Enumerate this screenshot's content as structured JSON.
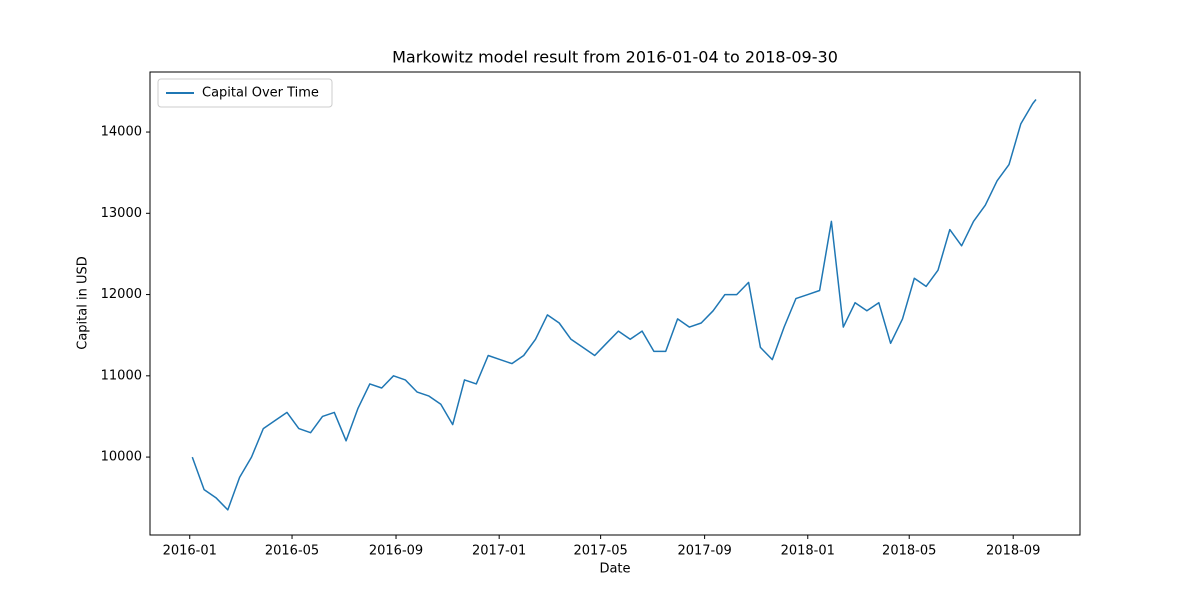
{
  "chart_data": {
    "type": "line",
    "title": "Markowitz model result from 2016-01-04 to 2018-09-30",
    "x_label": "Date",
    "y_label": "Capital in USD",
    "x": [
      "2016-01-04",
      "2016-01-18",
      "2016-02-01",
      "2016-02-15",
      "2016-02-29",
      "2016-03-14",
      "2016-03-28",
      "2016-04-11",
      "2016-04-25",
      "2016-05-09",
      "2016-05-23",
      "2016-06-06",
      "2016-06-20",
      "2016-07-04",
      "2016-07-18",
      "2016-08-01",
      "2016-08-15",
      "2016-08-29",
      "2016-09-12",
      "2016-09-26",
      "2016-10-10",
      "2016-10-24",
      "2016-11-07",
      "2016-11-21",
      "2016-12-05",
      "2016-12-19",
      "2017-01-02",
      "2017-01-16",
      "2017-01-30",
      "2017-02-13",
      "2017-02-27",
      "2017-03-13",
      "2017-03-27",
      "2017-04-10",
      "2017-04-24",
      "2017-05-08",
      "2017-05-22",
      "2017-06-05",
      "2017-06-19",
      "2017-07-03",
      "2017-07-17",
      "2017-07-31",
      "2017-08-14",
      "2017-08-28",
      "2017-09-11",
      "2017-09-25",
      "2017-10-09",
      "2017-10-23",
      "2017-11-06",
      "2017-11-20",
      "2017-12-04",
      "2017-12-18",
      "2018-01-01",
      "2018-01-15",
      "2018-01-29",
      "2018-02-12",
      "2018-02-26",
      "2018-03-12",
      "2018-03-26",
      "2018-04-09",
      "2018-04-23",
      "2018-05-07",
      "2018-05-21",
      "2018-06-04",
      "2018-06-18",
      "2018-07-02",
      "2018-07-16",
      "2018-07-30",
      "2018-08-13",
      "2018-08-27",
      "2018-09-10",
      "2018-09-24",
      "2018-09-28"
    ],
    "series": [
      {
        "name": "Capital Over Time",
        "color": "#1f77b4",
        "values": [
          10000,
          9600,
          9500,
          9350,
          9750,
          10000,
          10350,
          10450,
          10550,
          10350,
          10300,
          10500,
          10550,
          10200,
          10600,
          10900,
          10850,
          11000,
          10950,
          10800,
          10750,
          10650,
          10400,
          10950,
          10900,
          11250,
          11200,
          11150,
          11250,
          11450,
          11750,
          11650,
          11450,
          11350,
          11250,
          11400,
          11550,
          11450,
          11550,
          11300,
          11300,
          11700,
          11600,
          11650,
          11800,
          12000,
          12000,
          12150,
          11350,
          11200,
          11600,
          11950,
          12000,
          12050,
          12900,
          11600,
          11900,
          11800,
          11900,
          11400,
          11700,
          12200,
          12100,
          12300,
          12800,
          12600,
          12900,
          13100,
          13400,
          13600,
          14100,
          14350,
          14400
        ]
      }
    ],
    "xlim": [
      "2015-11-15",
      "2018-11-19"
    ],
    "xticks": [
      {
        "value": "2016-01-01",
        "label": "2016-01"
      },
      {
        "value": "2016-05-01",
        "label": "2016-05"
      },
      {
        "value": "2016-09-01",
        "label": "2016-09"
      },
      {
        "value": "2017-01-01",
        "label": "2017-01"
      },
      {
        "value": "2017-05-01",
        "label": "2017-05"
      },
      {
        "value": "2017-09-01",
        "label": "2017-09"
      },
      {
        "value": "2018-01-01",
        "label": "2018-01"
      },
      {
        "value": "2018-05-01",
        "label": "2018-05"
      },
      {
        "value": "2018-09-01",
        "label": "2018-09"
      }
    ],
    "ylim": [
      9041,
      14739
    ],
    "yticks": [
      10000,
      11000,
      12000,
      13000,
      14000
    ],
    "legend": "upper left"
  }
}
